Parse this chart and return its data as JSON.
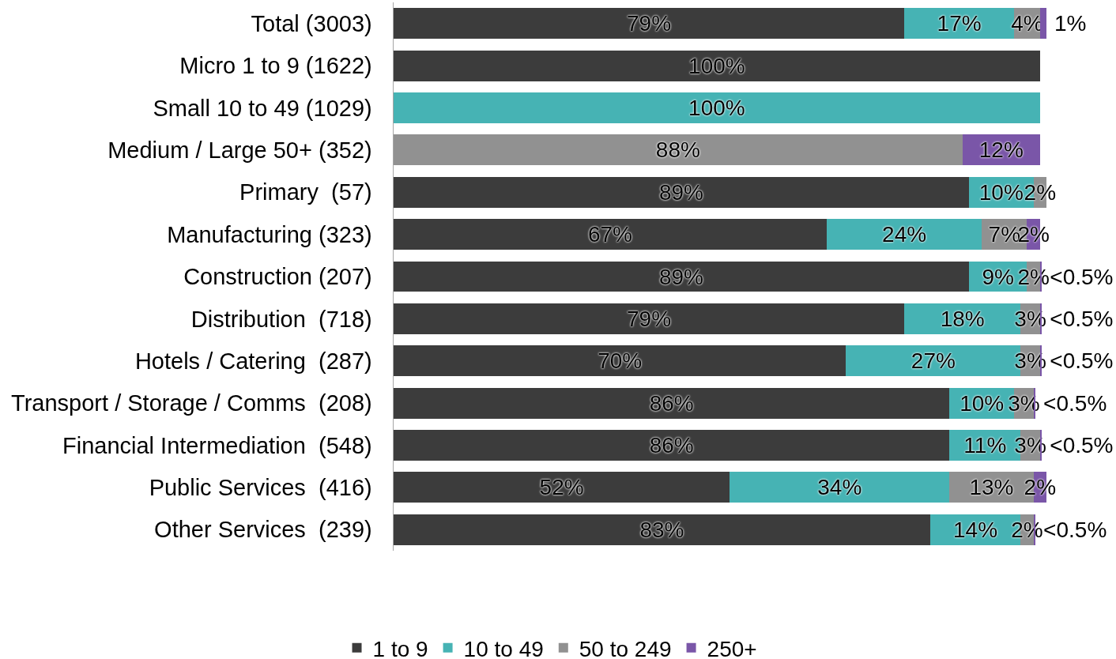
{
  "chart_data": {
    "type": "bar",
    "orientation": "horizontal",
    "stacked": true,
    "legend": "bottom",
    "categories": [
      "Total (3003)",
      "Micro 1 to 9 (1622)",
      "Small 10 to 49 (1029)",
      "Medium / Large 50+ (352)",
      "Primary  (57)",
      "Manufacturing (323)",
      "Construction (207)",
      "Distribution  (718)",
      "Hotels / Catering  (287)",
      "Transport / Storage / Comms  (208)",
      "Financial Intermediation  (548)",
      "Public Services  (416)",
      "Other Services  (239)"
    ],
    "series": [
      {
        "name": "1 to 9",
        "color": "#3c3c3c",
        "values": [
          79,
          100,
          null,
          null,
          89,
          67,
          89,
          79,
          70,
          86,
          86,
          52,
          83
        ],
        "value_labels": [
          "79%",
          "100%",
          null,
          null,
          "89%",
          "67%",
          "89%",
          "79%",
          "70%",
          "86%",
          "86%",
          "52%",
          "83%"
        ]
      },
      {
        "name": "10 to 49",
        "color": "#46b3b4",
        "values": [
          17,
          null,
          100,
          null,
          10,
          24,
          9,
          18,
          27,
          10,
          11,
          34,
          14
        ],
        "value_labels": [
          "17%",
          null,
          "100%",
          null,
          "10%",
          "24%",
          "9%",
          "18%",
          "27%",
          "10%",
          "11%",
          "34%",
          "14%"
        ]
      },
      {
        "name": "50 to 249",
        "color": "#919191",
        "values": [
          4,
          null,
          null,
          88,
          2,
          7,
          2,
          3,
          3,
          3,
          3,
          13,
          2
        ],
        "value_labels": [
          "4%",
          null,
          null,
          "88%",
          "2%",
          "7%",
          "2%",
          "3%",
          "3%",
          "3%",
          "3%",
          "13%",
          "2%"
        ]
      },
      {
        "name": "250+",
        "color": "#7a56a8",
        "values": [
          1,
          null,
          null,
          12,
          null,
          2,
          0.3,
          0.3,
          0.3,
          0.3,
          0.3,
          2,
          0.3
        ],
        "value_labels": [
          "1%",
          null,
          null,
          "12%",
          null,
          "2%",
          "<0.5%",
          "<0.5%",
          "<0.5%",
          "<0.5%",
          "<0.5%",
          "2%",
          "<0.5%"
        ]
      }
    ]
  }
}
